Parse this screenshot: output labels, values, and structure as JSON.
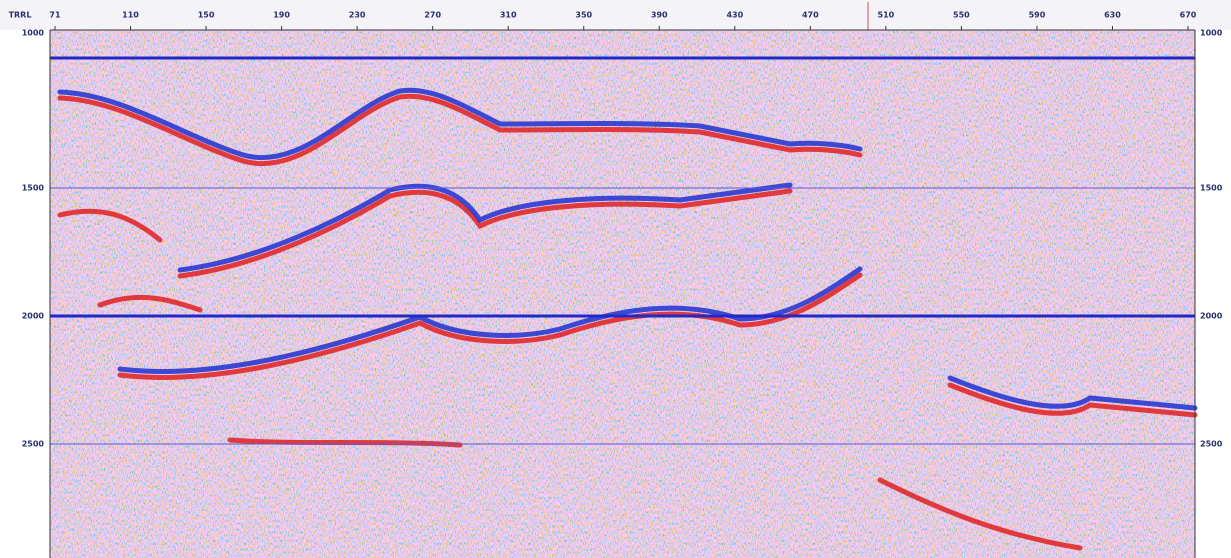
{
  "header": {
    "label": "TRRL"
  },
  "trace_ticks": [
    "71",
    "110",
    "150",
    "190",
    "230",
    "270",
    "310",
    "350",
    "390",
    "430",
    "470",
    "510",
    "550",
    "590",
    "630",
    "670"
  ],
  "time_ticks": [
    "1000",
    "1500",
    "2000",
    "2500"
  ]
}
